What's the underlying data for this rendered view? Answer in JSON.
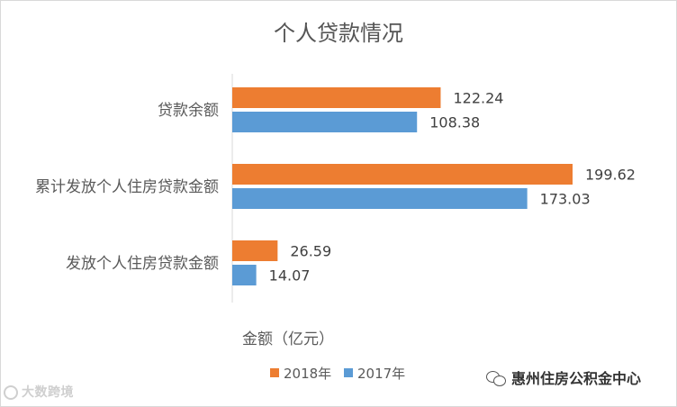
{
  "chart_data": {
    "type": "bar",
    "orientation": "horizontal",
    "title": "个人贷款情况",
    "xlabel": "金额（亿元）",
    "categories": [
      "贷款余额",
      "累计发放个人住房贷款金额",
      "发放个人住房贷款金额"
    ],
    "series": [
      {
        "name": "2018年",
        "values": [
          122.24,
          199.62,
          26.59
        ],
        "color": "#ED7D31"
      },
      {
        "name": "2017年",
        "values": [
          108.38,
          173.03,
          14.07
        ],
        "color": "#5B9BD5"
      }
    ],
    "xlim": [
      0,
      220
    ],
    "legend": "bottom",
    "grid": false
  },
  "watermark": {
    "text": "大数跨境"
  },
  "source": {
    "text": "惠州住房公积金中心"
  }
}
